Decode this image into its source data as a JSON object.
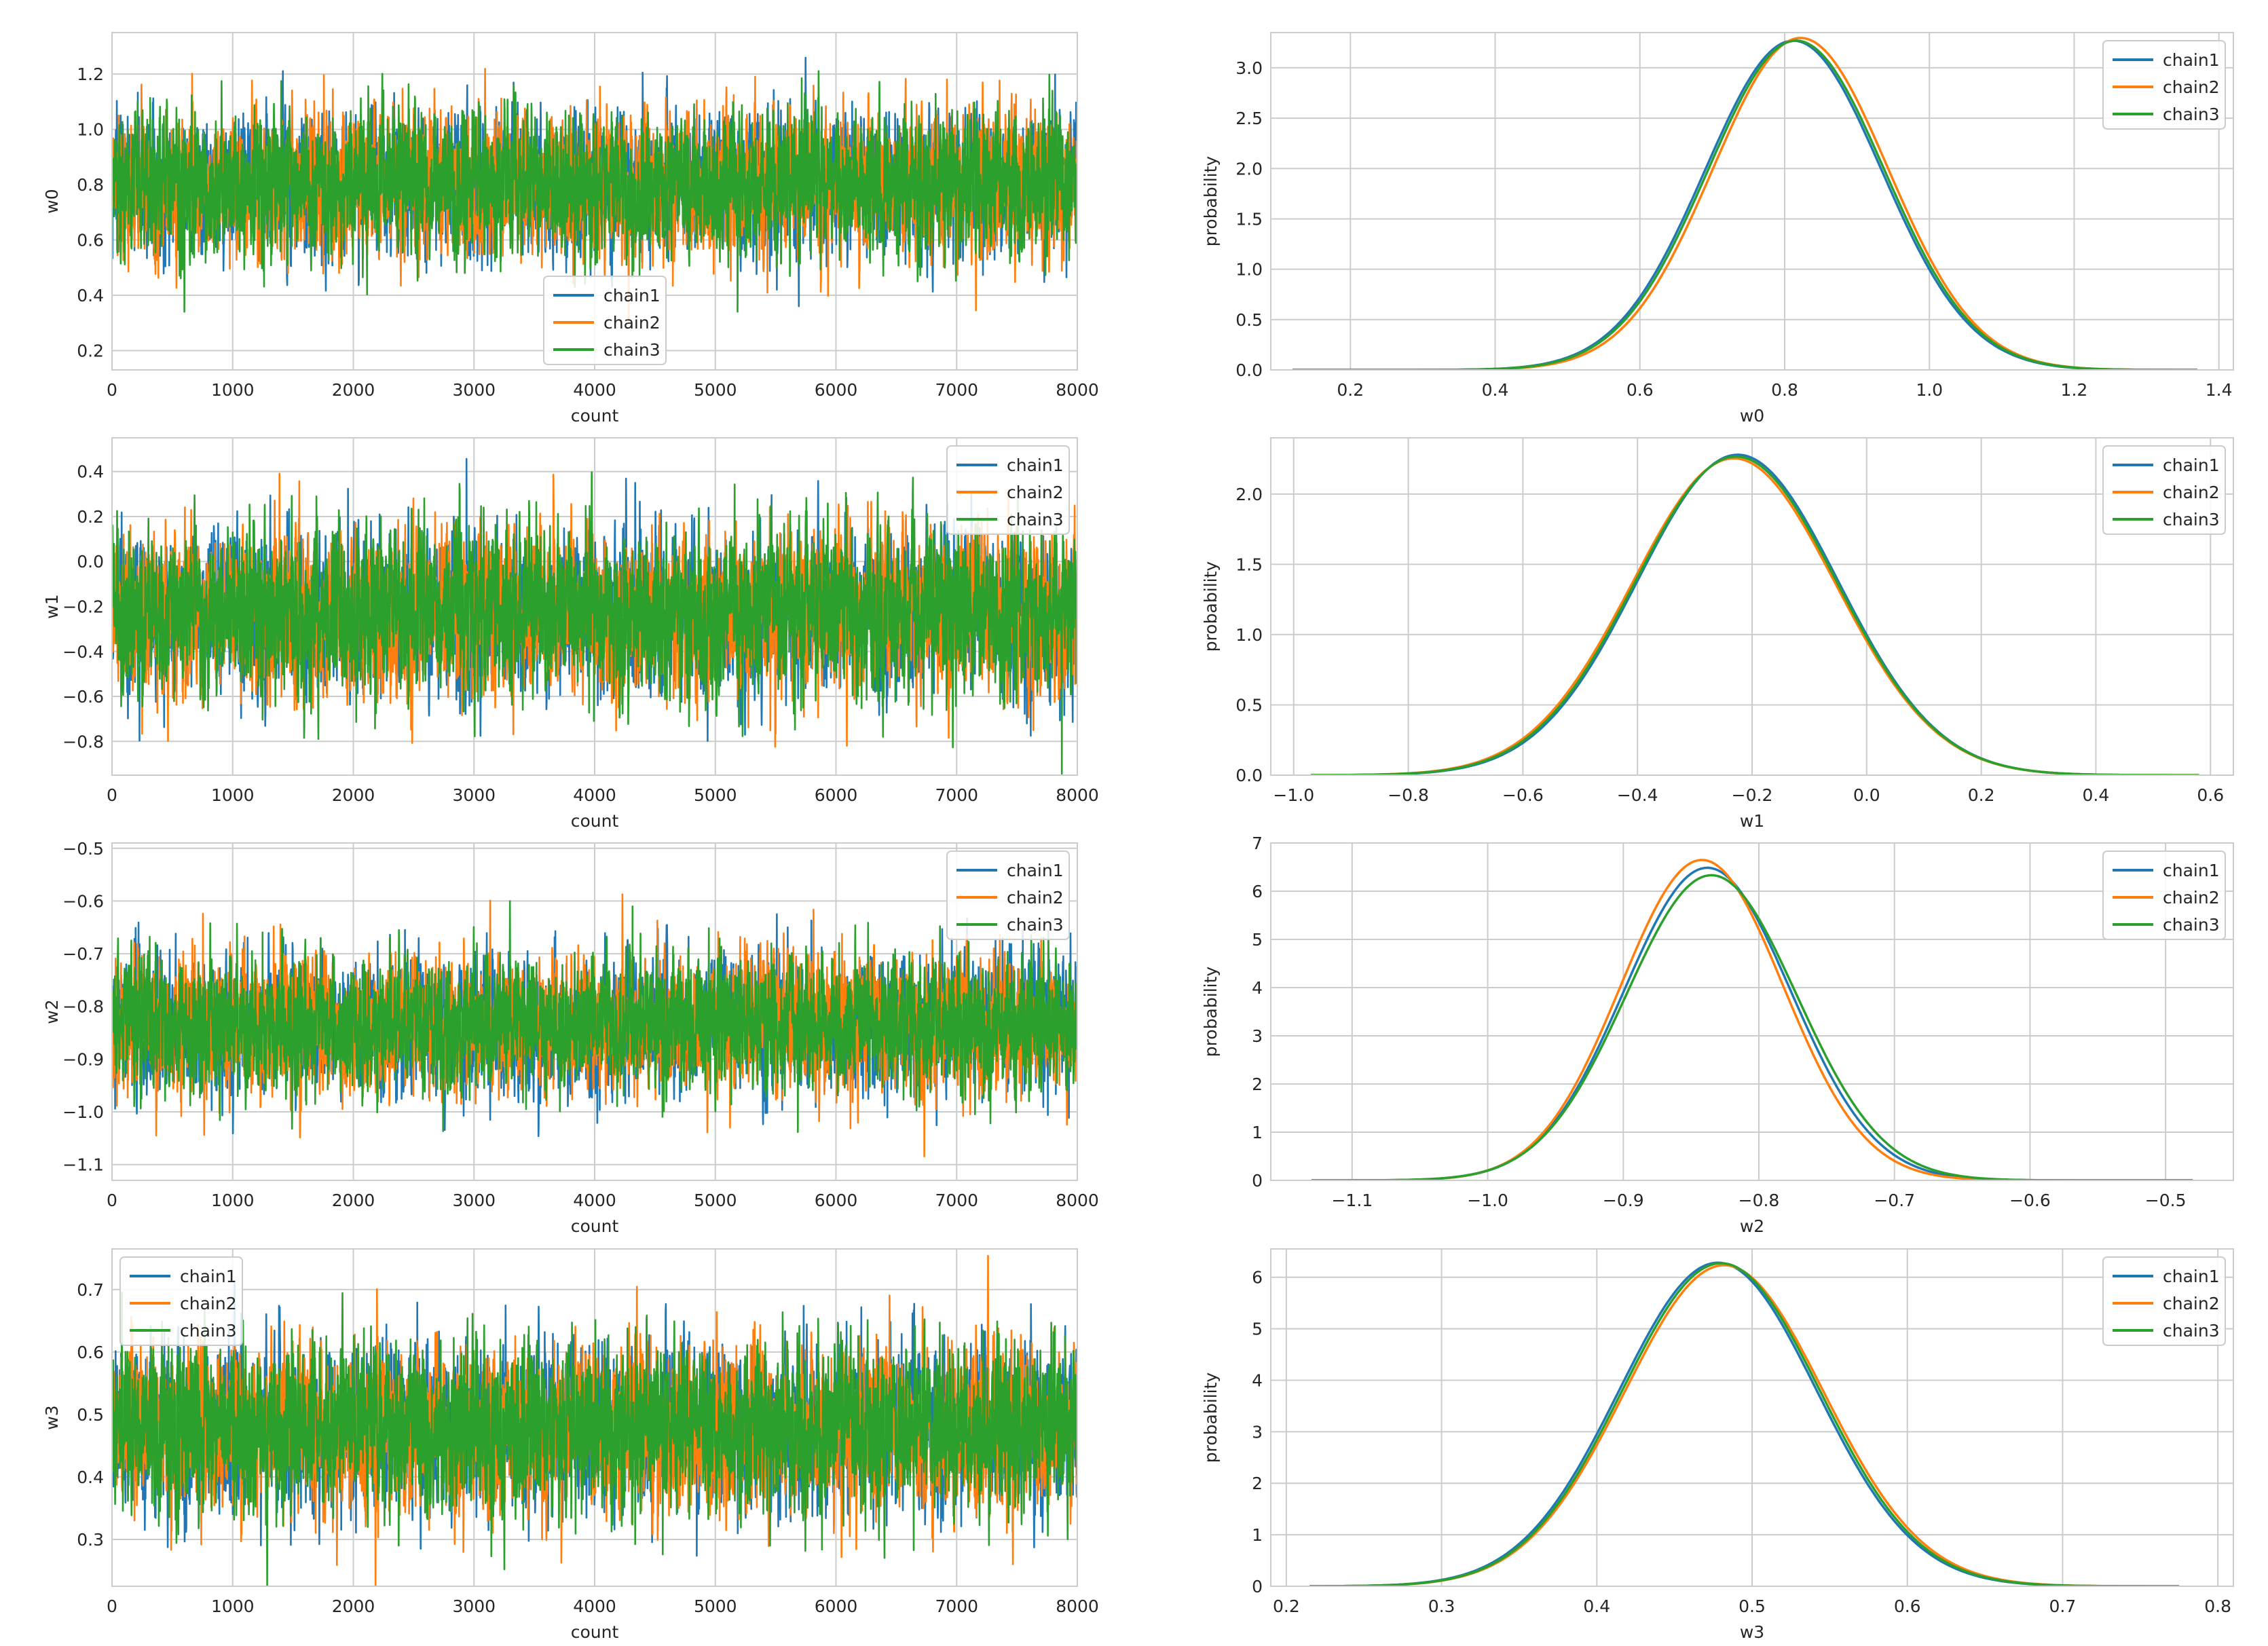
{
  "colors": {
    "chain1": "#1f77b4",
    "chain2": "#ff7f0e",
    "chain3": "#2ca02c",
    "grid": "#cccccc"
  },
  "chart_data": [
    {
      "id": "trace-w0",
      "type": "line",
      "xlabel": "count",
      "ylabel": "w0",
      "xlim": [
        0,
        8000
      ],
      "ylim": [
        0.13,
        1.35
      ],
      "xticks": [
        0,
        1000,
        2000,
        3000,
        4000,
        5000,
        6000,
        7000,
        8000
      ],
      "yticks": [
        0.2,
        0.4,
        0.6,
        0.8,
        1.0,
        1.2
      ],
      "ytick_labels": [
        "0.2",
        "0.4",
        "0.6",
        "0.8",
        "1.0",
        "1.2"
      ],
      "trace": {
        "n": 8000,
        "mean": 0.8,
        "sd": 0.125
      },
      "series": [
        {
          "name": "chain1"
        },
        {
          "name": "chain2"
        },
        {
          "name": "chain3"
        }
      ],
      "legend": "lower-center",
      "grid": true
    },
    {
      "id": "density-w0",
      "type": "line",
      "xlabel": "w0",
      "ylabel": "probability",
      "xlim": [
        0.09,
        1.42
      ],
      "ylim": [
        0,
        3.35
      ],
      "xticks": [
        0.2,
        0.4,
        0.6,
        0.8,
        1.0,
        1.2,
        1.4
      ],
      "xtick_labels": [
        "0.2",
        "0.4",
        "0.6",
        "0.8",
        "1.0",
        "1.2",
        "1.4"
      ],
      "yticks": [
        0,
        0.5,
        1.0,
        1.5,
        2.0,
        2.5,
        3.0
      ],
      "ytick_labels": [
        "0.0",
        "0.5",
        "1.0",
        "1.5",
        "2.0",
        "2.5",
        "3.0"
      ],
      "curve_range": [
        0.12,
        1.37
      ],
      "series": [
        {
          "name": "chain1",
          "mean": 0.812,
          "sd": 0.122
        },
        {
          "name": "chain2",
          "mean": 0.822,
          "sd": 0.121
        },
        {
          "name": "chain3",
          "mean": 0.816,
          "sd": 0.122
        }
      ],
      "legend": "top-right",
      "grid": true
    },
    {
      "id": "trace-w1",
      "type": "line",
      "xlabel": "count",
      "ylabel": "w1",
      "xlim": [
        0,
        8000
      ],
      "ylim": [
        -0.95,
        0.55
      ],
      "xticks": [
        0,
        1000,
        2000,
        3000,
        4000,
        5000,
        6000,
        7000,
        8000
      ],
      "yticks": [
        -0.8,
        -0.6,
        -0.4,
        -0.2,
        0.0,
        0.2,
        0.4
      ],
      "ytick_labels": [
        "−0.8",
        "−0.6",
        "−0.4",
        "−0.2",
        "0.0",
        "0.2",
        "0.4"
      ],
      "trace": {
        "n": 8000,
        "mean": -0.23,
        "sd": 0.175
      },
      "series": [
        {
          "name": "chain1"
        },
        {
          "name": "chain2"
        },
        {
          "name": "chain3"
        }
      ],
      "legend": "top-right",
      "grid": true
    },
    {
      "id": "density-w1",
      "type": "line",
      "xlabel": "w1",
      "ylabel": "probability",
      "xlim": [
        -1.04,
        0.64
      ],
      "ylim": [
        0,
        2.4
      ],
      "xticks": [
        -1.0,
        -0.8,
        -0.6,
        -0.4,
        -0.2,
        0.0,
        0.2,
        0.4,
        0.6
      ],
      "xtick_labels": [
        "−1.0",
        "−0.8",
        "−0.6",
        "−0.4",
        "−0.2",
        "0.0",
        "0.2",
        "0.4",
        "0.6"
      ],
      "yticks": [
        0,
        0.5,
        1.0,
        1.5,
        2.0
      ],
      "ytick_labels": [
        "0.0",
        "0.5",
        "1.0",
        "1.5",
        "2.0"
      ],
      "curve_range": [
        -0.97,
        0.58
      ],
      "series": [
        {
          "name": "chain1",
          "mean": -0.225,
          "sd": 0.175
        },
        {
          "name": "chain2",
          "mean": -0.232,
          "sd": 0.177
        },
        {
          "name": "chain3",
          "mean": -0.228,
          "sd": 0.176
        }
      ],
      "legend": "top-right",
      "grid": true
    },
    {
      "id": "trace-w2",
      "type": "line",
      "xlabel": "count",
      "ylabel": "w2",
      "xlim": [
        0,
        8000
      ],
      "ylim": [
        -1.13,
        -0.49
      ],
      "xticks": [
        0,
        1000,
        2000,
        3000,
        4000,
        5000,
        6000,
        7000,
        8000
      ],
      "yticks": [
        -1.1,
        -1.0,
        -0.9,
        -0.8,
        -0.7,
        -0.6,
        -0.5
      ],
      "ytick_labels": [
        "−1.1",
        "−1.0",
        "−0.9",
        "−0.8",
        "−0.7",
        "−0.6",
        "−0.5"
      ],
      "trace": {
        "n": 8000,
        "mean": -0.835,
        "sd": 0.062
      },
      "series": [
        {
          "name": "chain1"
        },
        {
          "name": "chain2"
        },
        {
          "name": "chain3"
        }
      ],
      "legend": "top-right",
      "grid": true
    },
    {
      "id": "density-w2",
      "type": "line",
      "xlabel": "w2",
      "ylabel": "probability",
      "xlim": [
        -1.16,
        -0.45
      ],
      "ylim": [
        0,
        7.0
      ],
      "xticks": [
        -1.1,
        -1.0,
        -0.9,
        -0.8,
        -0.7,
        -0.6,
        -0.5
      ],
      "xtick_labels": [
        "−1.1",
        "−1.0",
        "−0.9",
        "−0.8",
        "−0.7",
        "−0.6",
        "−0.5"
      ],
      "yticks": [
        0,
        1,
        2,
        3,
        4,
        5,
        6,
        7
      ],
      "ytick_labels": [
        "0",
        "1",
        "2",
        "3",
        "4",
        "5",
        "6",
        "7"
      ],
      "curve_range": [
        -1.13,
        -0.48
      ],
      "series": [
        {
          "name": "chain1",
          "mean": -0.838,
          "sd": 0.0615
        },
        {
          "name": "chain2",
          "mean": -0.842,
          "sd": 0.06
        },
        {
          "name": "chain3",
          "mean": -0.835,
          "sd": 0.063
        }
      ],
      "legend": "top-right",
      "grid": true
    },
    {
      "id": "trace-w3",
      "type": "line",
      "xlabel": "count",
      "ylabel": "w3",
      "xlim": [
        0,
        8000
      ],
      "ylim": [
        0.225,
        0.765
      ],
      "xticks": [
        0,
        1000,
        2000,
        3000,
        4000,
        5000,
        6000,
        7000,
        8000
      ],
      "yticks": [
        0.3,
        0.4,
        0.5,
        0.6,
        0.7
      ],
      "ytick_labels": [
        "0.3",
        "0.4",
        "0.5",
        "0.6",
        "0.7"
      ],
      "trace": {
        "n": 8000,
        "mean": 0.478,
        "sd": 0.064
      },
      "series": [
        {
          "name": "chain1"
        },
        {
          "name": "chain2"
        },
        {
          "name": "chain3"
        }
      ],
      "legend": "top-left",
      "grid": true
    },
    {
      "id": "density-w3",
      "type": "line",
      "xlabel": "w3",
      "ylabel": "probability",
      "xlim": [
        0.19,
        0.81
      ],
      "ylim": [
        0,
        6.55
      ],
      "xticks": [
        0.2,
        0.3,
        0.4,
        0.5,
        0.6,
        0.7,
        0.8
      ],
      "xtick_labels": [
        "0.2",
        "0.3",
        "0.4",
        "0.5",
        "0.6",
        "0.7",
        "0.8"
      ],
      "yticks": [
        0,
        1,
        2,
        3,
        4,
        5,
        6
      ],
      "ytick_labels": [
        "0",
        "1",
        "2",
        "3",
        "4",
        "5",
        "6"
      ],
      "curve_range": [
        0.215,
        0.775
      ],
      "series": [
        {
          "name": "chain1",
          "mean": 0.478,
          "sd": 0.0635
        },
        {
          "name": "chain2",
          "mean": 0.482,
          "sd": 0.064
        },
        {
          "name": "chain3",
          "mean": 0.48,
          "sd": 0.0636
        }
      ],
      "legend": "top-right",
      "grid": true
    }
  ]
}
